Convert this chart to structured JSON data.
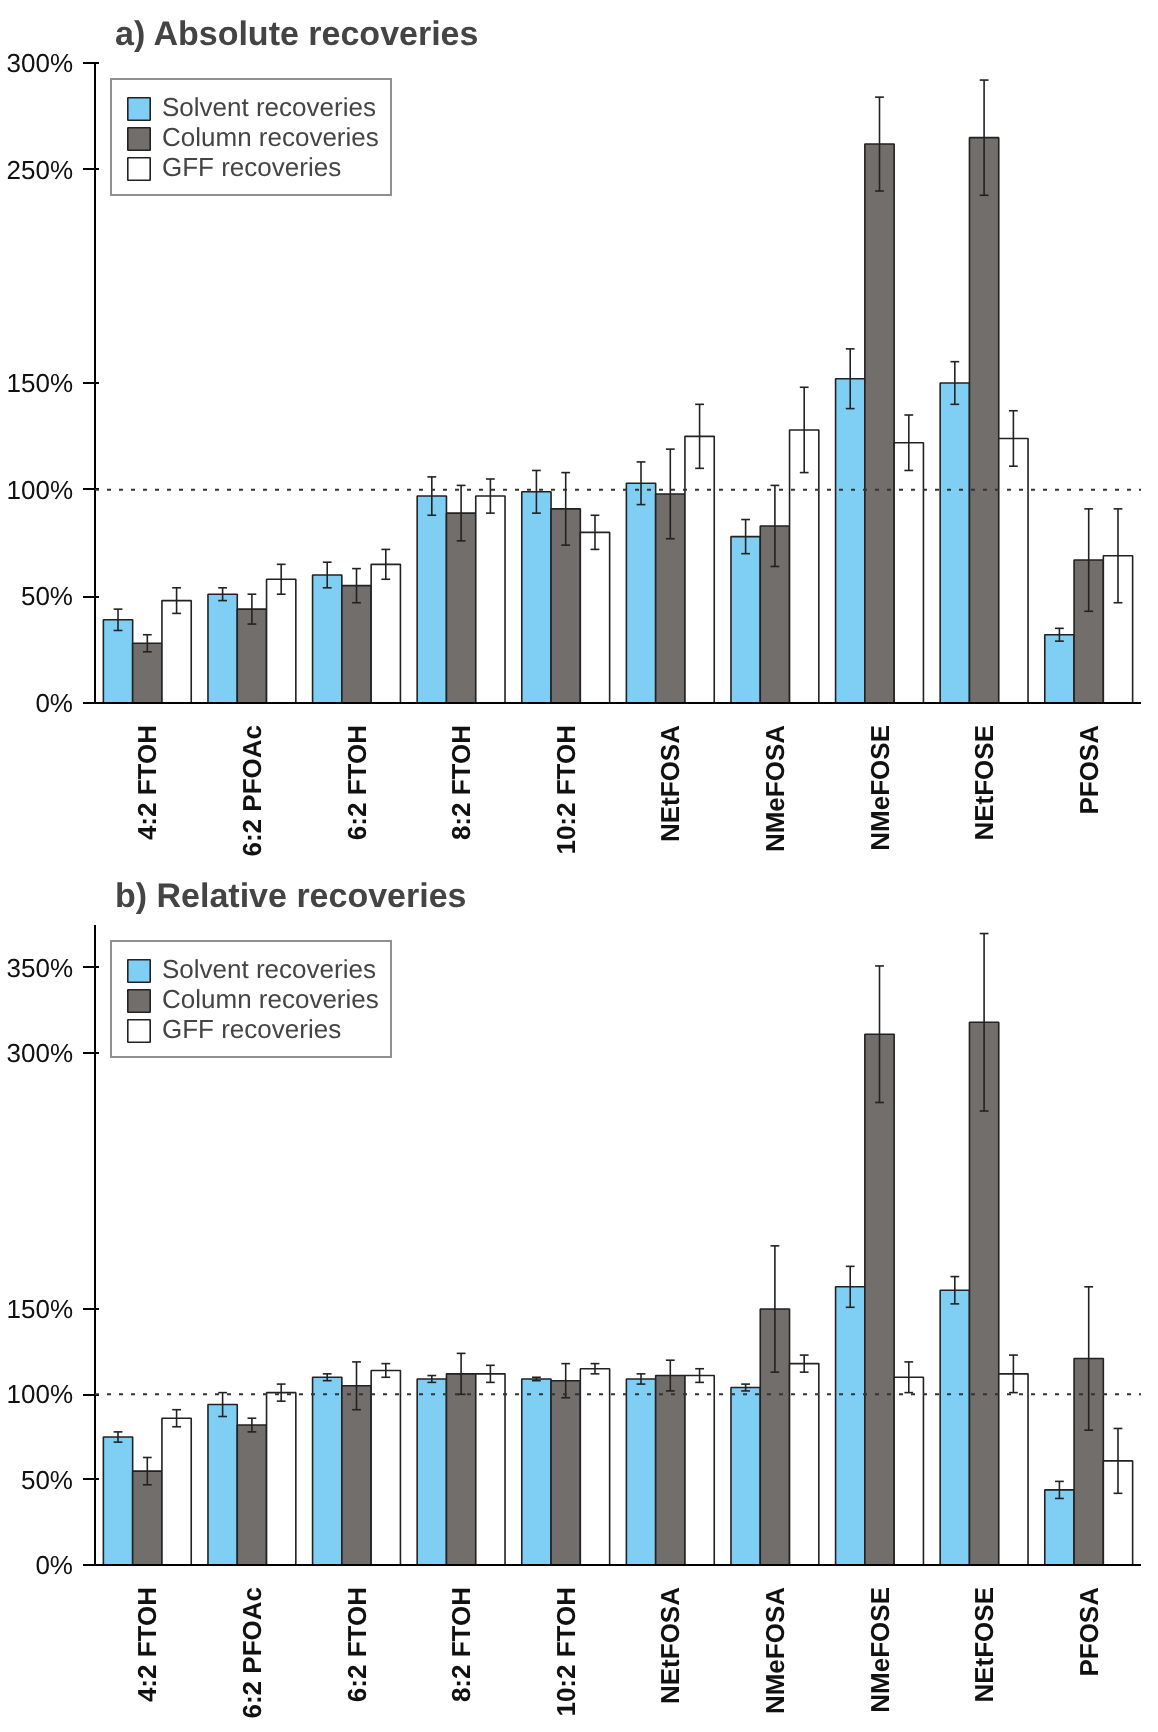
{
  "chart_data": [
    {
      "type": "bar",
      "title": "a) Absolute recoveries",
      "categories": [
        "4:2 FTOH",
        "6:2 PFOAc",
        "6:2 FTOH",
        "8:2 FTOH",
        "10:2 FTOH",
        "NEtFOSA",
        "NMeFOSA",
        "NMeFOSE",
        "NEtFOSE",
        "PFOSA"
      ],
      "series": [
        {
          "name": "Solvent recoveries",
          "color": "#7fcff5",
          "values": [
            39,
            51,
            60,
            97,
            99,
            103,
            78,
            152,
            150,
            32
          ],
          "errors": [
            5,
            3,
            6,
            9,
            10,
            10,
            8,
            14,
            10,
            3
          ]
        },
        {
          "name": "Column recoveries",
          "color": "#716e6b",
          "values": [
            28,
            44,
            55,
            89,
            91,
            98,
            83,
            262,
            265,
            67
          ],
          "errors": [
            4,
            7,
            8,
            13,
            17,
            21,
            19,
            22,
            27,
            24
          ]
        },
        {
          "name": "GFF recoveries",
          "color": "#ffffff",
          "values": [
            48,
            58,
            65,
            97,
            80,
            125,
            128,
            122,
            124,
            69
          ],
          "errors": [
            6,
            7,
            7,
            8,
            8,
            15,
            20,
            13,
            13,
            22
          ]
        }
      ],
      "ylim": [
        0,
        300
      ],
      "yticks": [
        {
          "value": 0,
          "label": "0%"
        },
        {
          "value": 50,
          "label": "50%"
        },
        {
          "value": 100,
          "label": "100%"
        },
        {
          "value": 150,
          "label": "150%"
        },
        {
          "value": 250,
          "label": "250%"
        },
        {
          "value": 300,
          "label": "300%"
        }
      ],
      "ref_lines": [
        {
          "axis": "y",
          "value": 100,
          "line_style": "dotted",
          "color": "#333333"
        }
      ],
      "legend": "top left",
      "grid": false
    },
    {
      "type": "bar",
      "title": "b) Relative recoveries",
      "categories": [
        "4:2 FTOH",
        "6:2 PFOAc",
        "6:2 FTOH",
        "8:2 FTOH",
        "10:2 FTOH",
        "NEtFOSA",
        "NMeFOSA",
        "NMeFOSE",
        "NEtFOSE",
        "PFOSA"
      ],
      "series": [
        {
          "name": "Solvent recoveries",
          "color": "#7fcff5",
          "values": [
            75,
            94,
            110,
            109,
            109,
            109,
            104,
            163,
            161,
            44
          ],
          "errors": [
            3,
            7,
            2,
            2,
            1,
            3,
            2,
            12,
            8,
            5
          ]
        },
        {
          "name": "Column recoveries",
          "color": "#716e6b",
          "values": [
            55,
            82,
            105,
            112,
            108,
            111,
            150,
            311,
            318,
            121
          ],
          "errors": [
            8,
            4,
            14,
            12,
            10,
            9,
            37,
            40,
            52,
            42
          ]
        },
        {
          "name": "GFF recoveries",
          "color": "#ffffff",
          "values": [
            86,
            101,
            114,
            112,
            115,
            111,
            118,
            110,
            112,
            61
          ],
          "errors": [
            5,
            5,
            4,
            5,
            3,
            4,
            5,
            9,
            11,
            19
          ]
        }
      ],
      "ylim": [
        0,
        375
      ],
      "yticks": [
        {
          "value": 0,
          "label": "0%"
        },
        {
          "value": 50,
          "label": "50%"
        },
        {
          "value": 100,
          "label": "100%"
        },
        {
          "value": 150,
          "label": "150%"
        },
        {
          "value": 300,
          "label": "300%"
        },
        {
          "value": 350,
          "label": "350%"
        }
      ],
      "ref_lines": [
        {
          "axis": "y",
          "value": 100,
          "line_style": "dotted",
          "color": "#333333"
        }
      ],
      "legend": "top left",
      "grid": false
    }
  ]
}
